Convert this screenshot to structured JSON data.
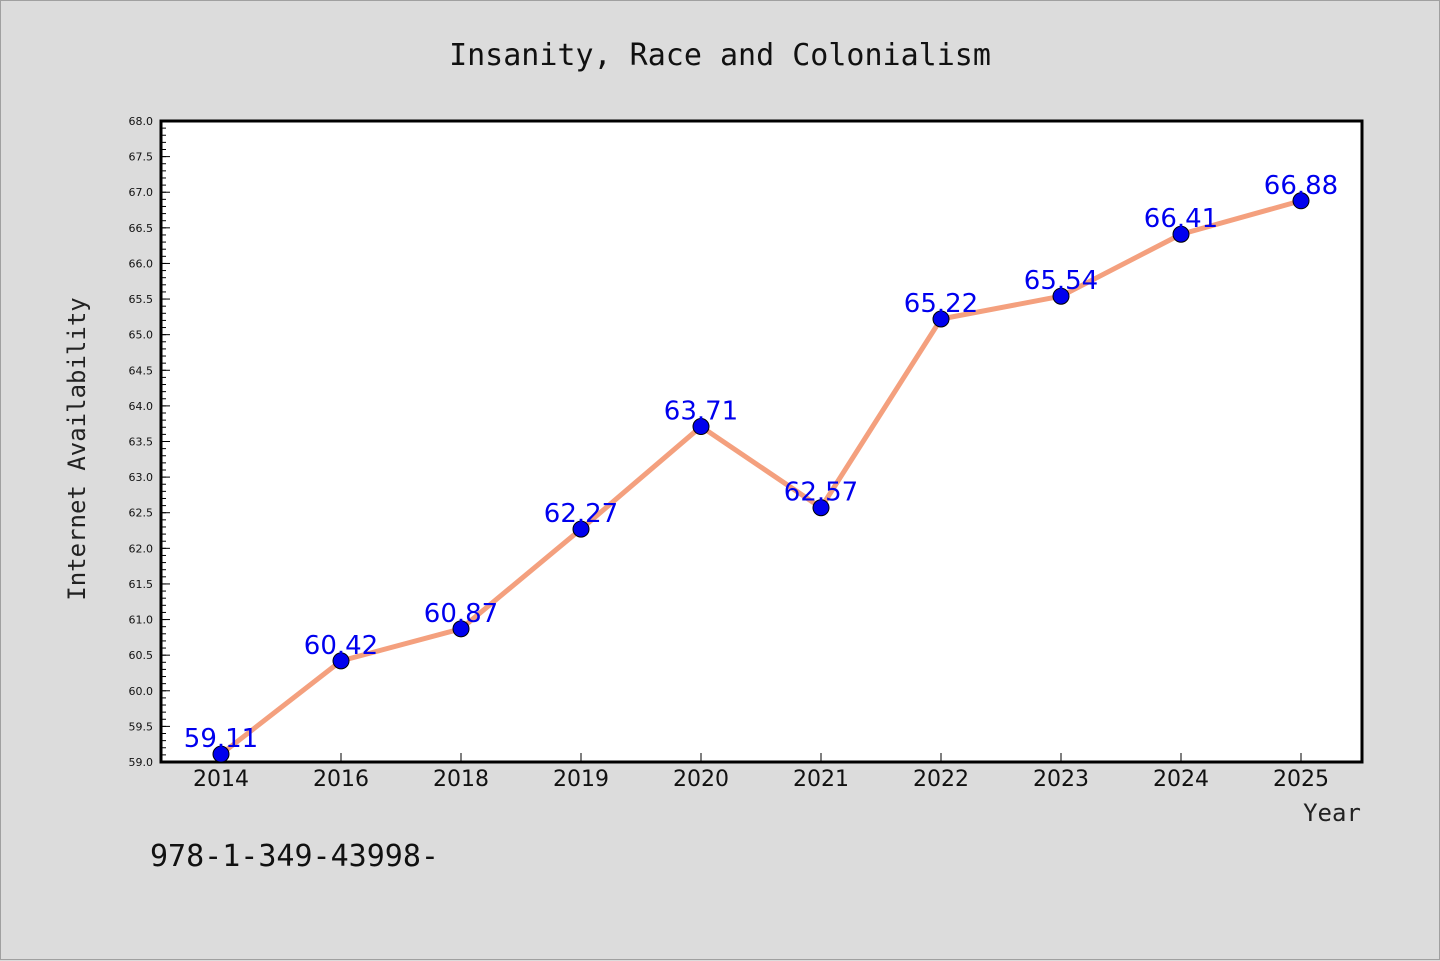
{
  "chart_data": {
    "type": "line",
    "title": "Insanity, Race and Colonialism",
    "xlabel": "Year",
    "ylabel": "Internet Availability",
    "categories": [
      "2014",
      "2016",
      "2018",
      "2019",
      "2020",
      "2021",
      "2022",
      "2023",
      "2024",
      "2025"
    ],
    "values": [
      59.11,
      60.42,
      60.87,
      62.27,
      63.71,
      62.57,
      65.22,
      65.54,
      66.41,
      66.88
    ],
    "data_labels": [
      "59.11",
      "60.42",
      "60.87",
      "62.27",
      "63.71",
      "62.57",
      "65.22",
      "65.54",
      "66.41",
      "66.88"
    ],
    "ylim": [
      59.0,
      68.0
    ],
    "yticks": [
      "59.0",
      "59.5",
      "60.0",
      "60.5",
      "61.0",
      "61.5",
      "62.0",
      "62.5",
      "63.0",
      "63.5",
      "64.0",
      "64.5",
      "65.0",
      "65.5",
      "66.0",
      "66.5",
      "67.0",
      "67.5",
      "68.0"
    ],
    "grid": false,
    "legend": "none",
    "line_color": "#f4a07e",
    "marker_color": "#0000ee",
    "label_color": "#0000ee"
  },
  "footnote": "978-1-349-43998-"
}
